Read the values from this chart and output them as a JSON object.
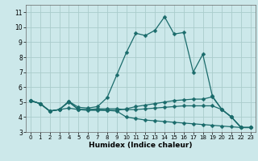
{
  "xlabel": "Humidex (Indice chaleur)",
  "xlim": [
    -0.5,
    23.5
  ],
  "ylim": [
    3,
    11.5
  ],
  "xticks": [
    0,
    1,
    2,
    3,
    4,
    5,
    6,
    7,
    8,
    9,
    10,
    11,
    12,
    13,
    14,
    15,
    16,
    17,
    18,
    19,
    20,
    21,
    22,
    23
  ],
  "yticks": [
    3,
    4,
    5,
    6,
    7,
    8,
    9,
    10,
    11
  ],
  "bg_color": "#cce8ea",
  "grid_color": "#aacccc",
  "line_color": "#1a6b6b",
  "lines": [
    {
      "x": [
        0,
        1,
        2,
        3,
        4,
        5,
        6,
        7,
        8,
        9,
        10,
        11,
        12,
        13,
        14,
        15,
        16,
        17,
        18,
        19,
        20,
        21,
        22,
        23
      ],
      "y": [
        5.1,
        4.9,
        4.4,
        4.5,
        5.05,
        4.65,
        4.6,
        4.7,
        5.3,
        6.8,
        8.3,
        9.6,
        9.45,
        9.8,
        10.7,
        9.55,
        9.65,
        7.0,
        8.2,
        5.4,
        4.5,
        4.0,
        3.3,
        3.3
      ]
    },
    {
      "x": [
        0,
        1,
        2,
        3,
        4,
        5,
        6,
        7,
        8,
        9,
        10,
        11,
        12,
        13,
        14,
        15,
        16,
        17,
        18,
        19,
        20,
        21,
        22,
        23
      ],
      "y": [
        5.1,
        4.9,
        4.4,
        4.5,
        5.05,
        4.5,
        4.5,
        4.5,
        4.45,
        4.45,
        4.55,
        4.7,
        4.8,
        4.9,
        5.0,
        5.1,
        5.15,
        5.2,
        5.2,
        5.35,
        4.5,
        4.0,
        3.3,
        3.3
      ]
    },
    {
      "x": [
        0,
        1,
        2,
        3,
        4,
        5,
        6,
        7,
        8,
        9,
        10,
        11,
        12,
        13,
        14,
        15,
        16,
        17,
        18,
        19,
        20,
        21,
        22,
        23
      ],
      "y": [
        5.1,
        4.9,
        4.4,
        4.5,
        4.6,
        4.5,
        4.45,
        4.45,
        4.45,
        4.4,
        4.0,
        3.9,
        3.8,
        3.75,
        3.7,
        3.65,
        3.6,
        3.55,
        3.5,
        3.45,
        3.4,
        3.35,
        3.3,
        3.3
      ]
    },
    {
      "x": [
        0,
        1,
        2,
        3,
        4,
        5,
        6,
        7,
        8,
        9,
        10,
        11,
        12,
        13,
        14,
        15,
        16,
        17,
        18,
        19,
        20,
        21,
        22,
        23
      ],
      "y": [
        5.1,
        4.9,
        4.4,
        4.5,
        5.0,
        4.5,
        4.5,
        4.55,
        4.55,
        4.55,
        4.5,
        4.5,
        4.55,
        4.6,
        4.65,
        4.7,
        4.75,
        4.75,
        4.75,
        4.75,
        4.5,
        4.0,
        3.3,
        3.3
      ]
    }
  ],
  "marker": "D",
  "markersize": 2.5,
  "linewidth": 0.9
}
